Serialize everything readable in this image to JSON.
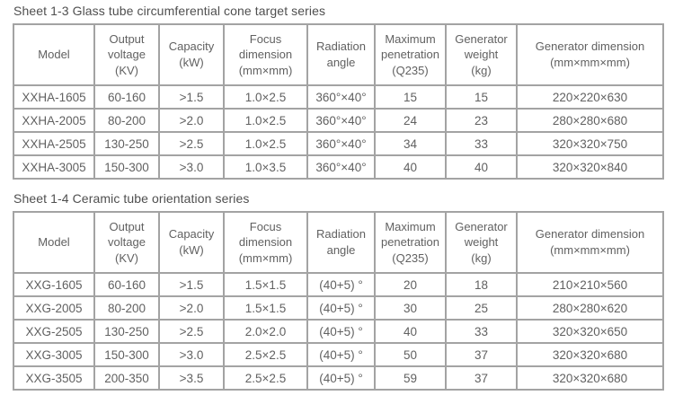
{
  "colors": {
    "background": "#ffffff",
    "border": "#a3a3a3",
    "table_text": "#616161",
    "title_text": "#4f4f4f"
  },
  "tables": [
    {
      "title": "Sheet 1-3 Glass tube circumferential cone target series",
      "headers": [
        {
          "id": "model",
          "lines": [
            "Model"
          ]
        },
        {
          "id": "output-voltage",
          "lines": [
            "Output",
            "voltage",
            "(KV)"
          ]
        },
        {
          "id": "capacity",
          "lines": [
            "Capacity",
            "(kW)"
          ]
        },
        {
          "id": "focus-dimension",
          "lines": [
            "Focus",
            "dimension",
            "(mm×mm)"
          ]
        },
        {
          "id": "radiation-angle",
          "lines": [
            "Radiation",
            "angle"
          ]
        },
        {
          "id": "maximum-penetration",
          "lines": [
            "Maximum",
            "penetration",
            "(Q235)"
          ]
        },
        {
          "id": "generator-weight",
          "lines": [
            "Generator",
            "weight",
            "(kg)"
          ]
        },
        {
          "id": "generator-dimension",
          "lines": [
            "Generator dimension",
            "(mm×mm×mm)"
          ]
        }
      ],
      "rows": [
        [
          "XXHA-1605",
          "60-160",
          ">1.5",
          "1.0×2.5",
          "360°×40°",
          "15",
          "15",
          "220×220×630"
        ],
        [
          "XXHA-2005",
          "80-200",
          ">2.0",
          "1.0×2.5",
          "360°×40°",
          "24",
          "23",
          "280×280×680"
        ],
        [
          "XXHA-2505",
          "130-250",
          ">2.5",
          "1.0×2.5",
          "360°×40°",
          "34",
          "33",
          "320×320×750"
        ],
        [
          "XXHA-3005",
          "150-300",
          ">3.0",
          "1.0×3.5",
          "360°×40°",
          "40",
          "40",
          "320×320×840"
        ]
      ]
    },
    {
      "title": "Sheet 1-4 Ceramic tube orientation series",
      "headers": [
        {
          "id": "model",
          "lines": [
            "Model"
          ]
        },
        {
          "id": "output-voltage",
          "lines": [
            "Output",
            "voltage",
            "(KV)"
          ]
        },
        {
          "id": "capacity",
          "lines": [
            "Capacity",
            "(kW)"
          ]
        },
        {
          "id": "focus-dimension",
          "lines": [
            "Focus",
            "dimension",
            "(mm×mm)"
          ]
        },
        {
          "id": "radiation-angle",
          "lines": [
            "Radiation",
            "angle"
          ]
        },
        {
          "id": "maximum-penetration",
          "lines": [
            "Maximum",
            "penetration",
            "(Q235)"
          ]
        },
        {
          "id": "generator-weight",
          "lines": [
            "Generator",
            "weight",
            "(kg)"
          ]
        },
        {
          "id": "generator-dimension",
          "lines": [
            "Generator dimension",
            "(mm×mm×mm)"
          ]
        }
      ],
      "rows": [
        [
          "XXG-1605",
          "60-160",
          ">1.5",
          "1.5×1.5",
          "(40+5) °",
          "20",
          "18",
          "210×210×560"
        ],
        [
          "XXG-2005",
          "80-200",
          ">2.0",
          "1.5×1.5",
          "(40+5) °",
          "30",
          "25",
          "280×280×620"
        ],
        [
          "XXG-2505",
          "130-250",
          ">2.5",
          "2.0×2.0",
          "(40+5) °",
          "40",
          "33",
          "320×320×650"
        ],
        [
          "XXG-3005",
          "150-300",
          ">3.0",
          "2.5×2.5",
          "(40+5) °",
          "50",
          "37",
          "320×320×680"
        ],
        [
          "XXG-3505",
          "200-350",
          ">3.5",
          "2.5×2.5",
          "(40+5) °",
          "59",
          "37",
          "320×320×680"
        ]
      ]
    }
  ]
}
